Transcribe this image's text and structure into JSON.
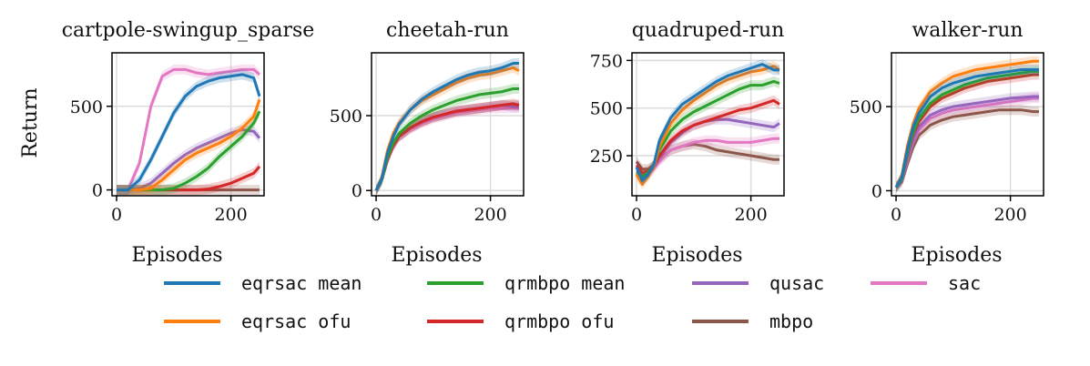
{
  "figure": {
    "ylabel": "Return"
  },
  "chart_data": [
    {
      "type": "line",
      "title": "cartpole-swingup_sparse",
      "xlabel": "Episodes",
      "ylabel": "Return",
      "xlim": [
        -8,
        258
      ],
      "ylim": [
        -35,
        820
      ],
      "xticks": [
        0,
        200
      ],
      "yticks": [
        0,
        500
      ],
      "grid": true,
      "series": [
        {
          "name": "eqrsac mean",
          "x": [
            0,
            20,
            40,
            60,
            80,
            100,
            120,
            140,
            160,
            180,
            200,
            220,
            240,
            250
          ],
          "y": [
            0,
            0,
            60,
            180,
            320,
            460,
            560,
            620,
            650,
            670,
            680,
            690,
            670,
            560
          ]
        },
        {
          "name": "eqrsac ofu",
          "x": [
            0,
            20,
            40,
            60,
            80,
            100,
            120,
            140,
            160,
            180,
            200,
            220,
            240,
            250
          ],
          "y": [
            0,
            0,
            0,
            10,
            60,
            120,
            180,
            220,
            250,
            280,
            320,
            370,
            440,
            540
          ]
        },
        {
          "name": "qrmbpo mean",
          "x": [
            0,
            20,
            40,
            60,
            80,
            100,
            120,
            140,
            160,
            180,
            200,
            220,
            240,
            250
          ],
          "y": [
            0,
            0,
            0,
            0,
            0,
            10,
            40,
            80,
            130,
            200,
            260,
            320,
            400,
            470
          ]
        },
        {
          "name": "qrmbpo ofu",
          "x": [
            0,
            20,
            40,
            60,
            80,
            100,
            120,
            140,
            160,
            180,
            200,
            220,
            240,
            250
          ],
          "y": [
            0,
            0,
            0,
            0,
            0,
            0,
            0,
            0,
            5,
            20,
            40,
            70,
            100,
            140
          ]
        },
        {
          "name": "qusac",
          "x": [
            0,
            20,
            40,
            60,
            80,
            100,
            120,
            140,
            160,
            180,
            200,
            220,
            240,
            250
          ],
          "y": [
            0,
            0,
            10,
            40,
            100,
            160,
            210,
            250,
            280,
            310,
            340,
            360,
            350,
            310
          ]
        },
        {
          "name": "sac",
          "x": [
            0,
            20,
            40,
            60,
            80,
            100,
            120,
            140,
            160,
            180,
            200,
            220,
            240,
            250
          ],
          "y": [
            0,
            0,
            160,
            500,
            680,
            720,
            720,
            700,
            690,
            700,
            710,
            720,
            720,
            690
          ]
        },
        {
          "name": "mbpo",
          "x": [
            0,
            250
          ],
          "y": [
            0,
            0
          ]
        }
      ]
    },
    {
      "type": "line",
      "title": "cheetah-run",
      "xlabel": "Episodes",
      "ylabel": "",
      "xlim": [
        -8,
        258
      ],
      "ylim": [
        -35,
        920
      ],
      "xticks": [
        0,
        200
      ],
      "yticks": [
        0,
        500
      ],
      "grid": true,
      "series": [
        {
          "name": "eqrsac mean",
          "x": [
            0,
            10,
            20,
            30,
            40,
            60,
            80,
            100,
            120,
            140,
            160,
            180,
            200,
            220,
            240,
            250
          ],
          "y": [
            0,
            80,
            250,
            360,
            440,
            540,
            610,
            660,
            700,
            740,
            770,
            790,
            800,
            820,
            850,
            850
          ]
        },
        {
          "name": "eqrsac ofu",
          "x": [
            0,
            10,
            20,
            30,
            40,
            60,
            80,
            100,
            120,
            140,
            160,
            180,
            200,
            220,
            240,
            250
          ],
          "y": [
            0,
            90,
            270,
            380,
            450,
            540,
            600,
            640,
            680,
            720,
            750,
            770,
            780,
            800,
            820,
            800
          ]
        },
        {
          "name": "qrmbpo mean",
          "x": [
            0,
            10,
            20,
            30,
            40,
            60,
            80,
            100,
            120,
            140,
            160,
            180,
            200,
            220,
            240,
            250
          ],
          "y": [
            0,
            70,
            220,
            320,
            380,
            450,
            500,
            540,
            570,
            600,
            620,
            640,
            650,
            660,
            680,
            680
          ]
        },
        {
          "name": "qrmbpo ofu",
          "x": [
            0,
            10,
            20,
            30,
            40,
            60,
            80,
            100,
            120,
            140,
            160,
            180,
            200,
            220,
            240,
            250
          ],
          "y": [
            0,
            70,
            210,
            300,
            360,
            420,
            460,
            490,
            510,
            530,
            540,
            550,
            560,
            570,
            580,
            570
          ]
        },
        {
          "name": "qusac",
          "x": [
            0,
            10,
            20,
            30,
            40,
            60,
            80,
            100,
            120,
            140,
            160,
            180,
            200,
            220,
            240,
            250
          ],
          "y": [
            0,
            70,
            210,
            300,
            360,
            420,
            460,
            490,
            510,
            530,
            540,
            550,
            560,
            570,
            560,
            560
          ]
        },
        {
          "name": "sac",
          "x": [
            0,
            10,
            20,
            30,
            40,
            60,
            80,
            100,
            120,
            140,
            160,
            180,
            200,
            220,
            240,
            250
          ],
          "y": [
            0,
            70,
            200,
            300,
            360,
            410,
            450,
            480,
            500,
            520,
            530,
            540,
            550,
            550,
            550,
            550
          ]
        },
        {
          "name": "mbpo",
          "x": [
            0,
            10,
            20,
            30,
            40,
            60,
            80,
            100,
            120,
            140,
            160,
            180,
            200,
            220,
            240,
            250
          ],
          "y": [
            0,
            70,
            210,
            300,
            360,
            420,
            460,
            490,
            510,
            530,
            540,
            550,
            560,
            570,
            570,
            570
          ]
        }
      ]
    },
    {
      "type": "line",
      "title": "quadruped-run",
      "xlabel": "Episodes",
      "ylabel": "",
      "xlim": [
        -8,
        258
      ],
      "ylim": [
        40,
        790
      ],
      "xticks": [
        0,
        200
      ],
      "yticks": [
        250,
        500,
        750
      ],
      "grid": true,
      "series": [
        {
          "name": "eqrsac mean",
          "x": [
            0,
            10,
            20,
            30,
            40,
            60,
            80,
            100,
            120,
            140,
            160,
            180,
            200,
            220,
            240,
            250
          ],
          "y": [
            190,
            120,
            150,
            200,
            330,
            450,
            520,
            560,
            600,
            640,
            670,
            690,
            710,
            730,
            700,
            700
          ]
        },
        {
          "name": "eqrsac ofu",
          "x": [
            0,
            10,
            20,
            30,
            40,
            60,
            80,
            100,
            120,
            140,
            160,
            180,
            200,
            220,
            240,
            250
          ],
          "y": [
            150,
            100,
            140,
            190,
            300,
            420,
            490,
            540,
            580,
            620,
            650,
            670,
            690,
            700,
            720,
            700
          ]
        },
        {
          "name": "qrmbpo mean",
          "x": [
            0,
            10,
            20,
            30,
            40,
            60,
            80,
            100,
            120,
            140,
            160,
            180,
            200,
            220,
            240,
            250
          ],
          "y": [
            160,
            140,
            160,
            200,
            280,
            380,
            440,
            480,
            510,
            540,
            570,
            600,
            620,
            620,
            640,
            630
          ]
        },
        {
          "name": "qrmbpo ofu",
          "x": [
            0,
            10,
            20,
            30,
            40,
            60,
            80,
            100,
            120,
            140,
            160,
            180,
            200,
            220,
            240,
            250
          ],
          "y": [
            200,
            160,
            170,
            200,
            250,
            330,
            380,
            410,
            430,
            450,
            470,
            490,
            500,
            520,
            540,
            520
          ]
        },
        {
          "name": "qusac",
          "x": [
            0,
            10,
            20,
            30,
            40,
            60,
            80,
            100,
            120,
            140,
            160,
            180,
            200,
            220,
            240,
            250
          ],
          "y": [
            170,
            150,
            160,
            190,
            240,
            320,
            370,
            410,
            430,
            440,
            440,
            430,
            420,
            410,
            400,
            420
          ]
        },
        {
          "name": "sac",
          "x": [
            0,
            10,
            20,
            30,
            40,
            60,
            80,
            100,
            120,
            140,
            160,
            180,
            200,
            220,
            240,
            250
          ],
          "y": [
            160,
            140,
            150,
            180,
            220,
            280,
            300,
            320,
            330,
            330,
            320,
            320,
            320,
            330,
            340,
            340
          ]
        },
        {
          "name": "mbpo",
          "x": [
            0,
            10,
            20,
            30,
            40,
            60,
            80,
            100,
            120,
            140,
            160,
            180,
            200,
            220,
            240,
            250
          ],
          "y": [
            220,
            180,
            180,
            200,
            230,
            280,
            300,
            310,
            300,
            280,
            270,
            260,
            250,
            240,
            230,
            230
          ]
        }
      ]
    },
    {
      "type": "line",
      "title": "walker-run",
      "xlabel": "Episodes",
      "ylabel": "",
      "xlim": [
        -8,
        258
      ],
      "ylim": [
        -30,
        820
      ],
      "xticks": [
        0,
        200
      ],
      "yticks": [
        0,
        500
      ],
      "grid": true,
      "series": [
        {
          "name": "eqrsac mean",
          "x": [
            0,
            10,
            20,
            30,
            40,
            60,
            80,
            100,
            120,
            140,
            160,
            180,
            200,
            220,
            240,
            250
          ],
          "y": [
            20,
            80,
            250,
            380,
            460,
            560,
            610,
            640,
            660,
            680,
            690,
            700,
            710,
            720,
            720,
            720
          ]
        },
        {
          "name": "eqrsac ofu",
          "x": [
            0,
            10,
            20,
            30,
            40,
            60,
            80,
            100,
            120,
            140,
            160,
            180,
            200,
            220,
            240,
            250
          ],
          "y": [
            20,
            90,
            270,
            400,
            490,
            590,
            640,
            680,
            700,
            720,
            730,
            740,
            750,
            760,
            770,
            770
          ]
        },
        {
          "name": "qrmbpo mean",
          "x": [
            0,
            10,
            20,
            30,
            40,
            60,
            80,
            100,
            120,
            140,
            160,
            180,
            200,
            220,
            240,
            250
          ],
          "y": [
            20,
            70,
            230,
            350,
            430,
            520,
            570,
            600,
            630,
            650,
            670,
            680,
            690,
            700,
            710,
            710
          ]
        },
        {
          "name": "qrmbpo ofu",
          "x": [
            0,
            10,
            20,
            30,
            40,
            60,
            80,
            100,
            120,
            140,
            160,
            180,
            200,
            220,
            240,
            250
          ],
          "y": [
            20,
            70,
            220,
            340,
            410,
            500,
            550,
            580,
            610,
            630,
            650,
            660,
            670,
            680,
            690,
            690
          ]
        },
        {
          "name": "qusac",
          "x": [
            0,
            10,
            20,
            30,
            40,
            60,
            80,
            100,
            120,
            140,
            160,
            180,
            200,
            220,
            240,
            250
          ],
          "y": [
            20,
            60,
            190,
            300,
            380,
            450,
            480,
            500,
            510,
            520,
            530,
            540,
            550,
            555,
            560,
            560
          ]
        },
        {
          "name": "sac",
          "x": [
            0,
            10,
            20,
            30,
            40,
            60,
            80,
            100,
            120,
            140,
            160,
            180,
            200,
            220,
            240,
            250
          ],
          "y": [
            20,
            60,
            180,
            290,
            360,
            430,
            460,
            480,
            490,
            500,
            510,
            520,
            530,
            540,
            550,
            550
          ]
        },
        {
          "name": "mbpo",
          "x": [
            0,
            10,
            20,
            30,
            40,
            60,
            80,
            100,
            120,
            140,
            160,
            180,
            200,
            220,
            240,
            250
          ],
          "y": [
            20,
            50,
            160,
            260,
            330,
            390,
            420,
            440,
            450,
            460,
            470,
            480,
            480,
            480,
            470,
            470
          ]
        }
      ]
    }
  ],
  "legend": {
    "position": "bottom",
    "entries": [
      {
        "name": "eqrsac mean",
        "color": "#1f77b4"
      },
      {
        "name": "eqrsac ofu",
        "color": "#ff7f0e"
      },
      {
        "name": "qrmbpo mean",
        "color": "#2ca02c"
      },
      {
        "name": "qrmbpo ofu",
        "color": "#d62728"
      },
      {
        "name": "qusac",
        "color": "#9467bd"
      },
      {
        "name": "mbpo",
        "color": "#8c564b"
      },
      {
        "name": "sac",
        "color": "#e377c2"
      }
    ]
  }
}
